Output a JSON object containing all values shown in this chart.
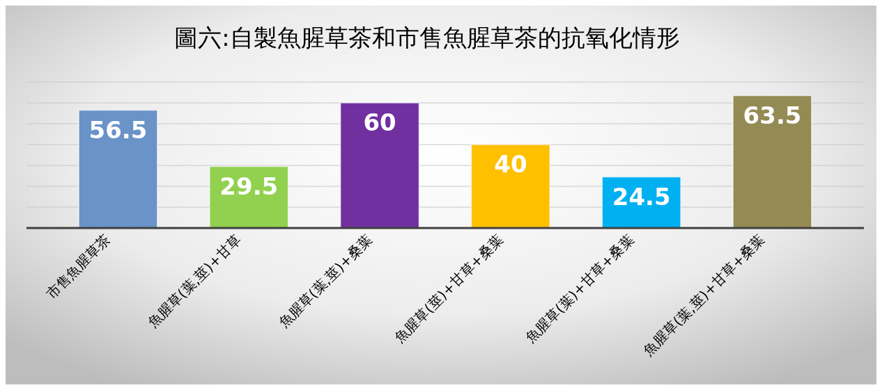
{
  "chart_data": {
    "type": "bar",
    "title": "圖六:自製魚腥草茶和市售魚腥草茶的抗氧化情形",
    "categories": [
      "市售魚腥草茶",
      "魚腥草(葉,莖)+甘草",
      "魚腥草(葉,莖)+桑葉",
      "魚腥草(莖)+甘草+桑葉",
      "魚腥草(葉)+甘草+桑葉",
      "魚腥草(葉,莖)+甘草+桑葉"
    ],
    "values": [
      56.5,
      29.5,
      60,
      40,
      24.5,
      63.5
    ],
    "colors": [
      "#6a93c8",
      "#92d050",
      "#7030a0",
      "#ffc000",
      "#00b0f0",
      "#948a54"
    ],
    "ylim": [
      0,
      70
    ],
    "yticks": [
      {
        "value": 0,
        "label": null
      },
      {
        "value": 10,
        "label": null
      },
      {
        "value": 20,
        "label": null
      },
      {
        "value": 30,
        "label": null
      },
      {
        "value": 40,
        "label": null
      },
      {
        "value": 50,
        "label": null
      },
      {
        "value": 60,
        "label": null
      },
      {
        "value": 70,
        "label": null
      }
    ],
    "tick_labels": "x",
    "grid": "y",
    "data_labels": true
  }
}
